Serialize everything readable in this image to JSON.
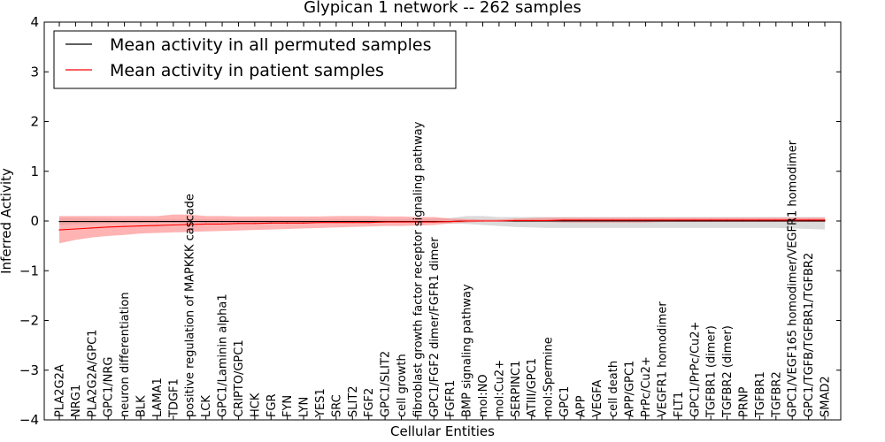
{
  "chart_data": {
    "type": "line",
    "title": "Glypican 1 network -- 262 samples",
    "xlabel": "Cellular Entities",
    "ylabel": "Inferred Activity",
    "ylim": [
      -4,
      4
    ],
    "yticks": [
      "4",
      "3",
      "2",
      "1",
      "0",
      "−1",
      "−2",
      "−3",
      "−4"
    ],
    "ytick_values": [
      4,
      3,
      2,
      1,
      0,
      -1,
      -2,
      -3,
      -4
    ],
    "grid": false,
    "legend_placement": "top-left",
    "categories": [
      "PLA2G2A",
      "NRG1",
      "PLA2G2A/GPC1",
      "GPC1/NRG",
      "neuron differentiation",
      "BLK",
      "LAMA1",
      "TDGF1",
      "positive regulation of MAPKKK cascade",
      "LCK",
      "GPC1/Laminin alpha1",
      "CRIPTO/GPC1",
      "HCK",
      "FGR",
      "FYN",
      "LYN",
      "YES1",
      "SRC",
      "SLIT2",
      "FGF2",
      "GPC1/SLIT2",
      "cell growth",
      "fibroblast growth factor receptor signaling pathway",
      "GPC1/FGF2 dimer/FGFR1 dimer",
      "FGFR1",
      "BMP signaling pathway",
      "mol:NO",
      "mol:Cu2+",
      "SERPINC1",
      "ATIII/GPC1",
      "mol:Spermine",
      "GPC1",
      "APP",
      "VEGFA",
      "cell death",
      "APP/GPC1",
      "PrPc/Cu2+",
      "VEGFR1 homodimer",
      "FLT1",
      "GPC1/PrPc/Cu2+",
      "TGFBR1 (dimer)",
      "TGFBR2 (dimer)",
      "PRNP",
      "TGFBR1",
      "TGFBR2",
      "GPC1/VEGF165 homodimer/VEGFR1 homodimer",
      "GPC1/TGFB/TGFBR1/TGFBR2",
      "SMAD2"
    ],
    "series": [
      {
        "name": "Mean activity in all permuted samples",
        "color": "#000000",
        "band_color": "#b0b0b0",
        "values": [
          -0.01,
          -0.01,
          -0.01,
          -0.01,
          -0.01,
          -0.01,
          -0.01,
          -0.01,
          -0.01,
          -0.01,
          -0.01,
          -0.01,
          -0.01,
          -0.01,
          -0.01,
          -0.01,
          -0.01,
          -0.01,
          -0.01,
          -0.01,
          -0.01,
          -0.01,
          -0.01,
          -0.01,
          -0.01,
          0.0,
          0.0,
          0.0,
          0.0,
          0.0,
          0.0,
          0.0,
          0.0,
          0.0,
          0.0,
          0.0,
          0.0,
          0.0,
          0.0,
          0.0,
          0.0,
          0.0,
          0.0,
          0.0,
          0.0,
          0.0,
          0.0,
          0.0
        ],
        "lower": [
          -0.08,
          -0.07,
          -0.06,
          -0.05,
          -0.05,
          -0.04,
          -0.04,
          -0.04,
          -0.04,
          -0.04,
          -0.04,
          -0.04,
          -0.04,
          -0.04,
          -0.04,
          -0.04,
          -0.04,
          -0.04,
          -0.04,
          -0.04,
          -0.04,
          -0.04,
          -0.04,
          -0.04,
          -0.05,
          -0.06,
          -0.08,
          -0.1,
          -0.12,
          -0.13,
          -0.14,
          -0.14,
          -0.14,
          -0.14,
          -0.14,
          -0.14,
          -0.14,
          -0.14,
          -0.14,
          -0.14,
          -0.14,
          -0.14,
          -0.14,
          -0.14,
          -0.14,
          -0.15,
          -0.16,
          -0.17
        ],
        "upper": [
          0.06,
          0.06,
          0.05,
          0.05,
          0.04,
          0.04,
          0.04,
          0.04,
          0.04,
          0.04,
          0.04,
          0.04,
          0.04,
          0.04,
          0.04,
          0.04,
          0.04,
          0.04,
          0.04,
          0.04,
          0.04,
          0.04,
          0.04,
          0.05,
          0.06,
          0.1,
          0.1,
          0.08,
          0.08,
          0.08,
          0.08,
          0.08,
          0.08,
          0.08,
          0.08,
          0.08,
          0.08,
          0.08,
          0.08,
          0.08,
          0.08,
          0.08,
          0.08,
          0.08,
          0.08,
          0.08,
          0.08,
          0.08
        ]
      },
      {
        "name": "Mean activity in patient samples",
        "color": "#ff0000",
        "band_color": "#ff8080",
        "values": [
          -0.18,
          -0.16,
          -0.14,
          -0.12,
          -0.11,
          -0.1,
          -0.09,
          -0.08,
          -0.07,
          -0.06,
          -0.06,
          -0.05,
          -0.05,
          -0.04,
          -0.04,
          -0.04,
          -0.03,
          -0.03,
          -0.03,
          -0.03,
          -0.02,
          -0.02,
          -0.02,
          -0.02,
          -0.01,
          0.0,
          0.0,
          0.0,
          0.01,
          0.01,
          0.01,
          0.02,
          0.02,
          0.02,
          0.02,
          0.02,
          0.02,
          0.02,
          0.02,
          0.02,
          0.02,
          0.02,
          0.02,
          0.02,
          0.02,
          0.02,
          0.02,
          0.02
        ],
        "lower": [
          -0.45,
          -0.38,
          -0.33,
          -0.3,
          -0.28,
          -0.25,
          -0.24,
          -0.23,
          -0.22,
          -0.21,
          -0.2,
          -0.19,
          -0.18,
          -0.17,
          -0.16,
          -0.15,
          -0.14,
          -0.13,
          -0.12,
          -0.11,
          -0.1,
          -0.1,
          -0.09,
          -0.08,
          -0.05,
          -0.03,
          -0.01,
          0.0,
          -0.02,
          -0.02,
          -0.02,
          -0.03,
          -0.03,
          -0.03,
          -0.03,
          -0.03,
          -0.03,
          -0.02,
          -0.02,
          -0.02,
          -0.02,
          -0.02,
          -0.02,
          -0.02,
          -0.02,
          -0.02,
          -0.02,
          -0.02
        ],
        "upper": [
          0.1,
          0.1,
          0.1,
          0.1,
          0.1,
          0.1,
          0.1,
          0.13,
          0.13,
          0.1,
          0.1,
          0.09,
          0.09,
          0.09,
          0.09,
          0.09,
          0.09,
          0.1,
          0.1,
          0.1,
          0.09,
          0.09,
          0.08,
          0.08,
          0.05,
          0.04,
          0.03,
          0.03,
          0.05,
          0.06,
          0.07,
          0.07,
          0.07,
          0.07,
          0.07,
          0.07,
          0.07,
          0.07,
          0.07,
          0.07,
          0.07,
          0.07,
          0.07,
          0.07,
          0.07,
          0.07,
          0.07,
          0.07
        ]
      }
    ]
  }
}
